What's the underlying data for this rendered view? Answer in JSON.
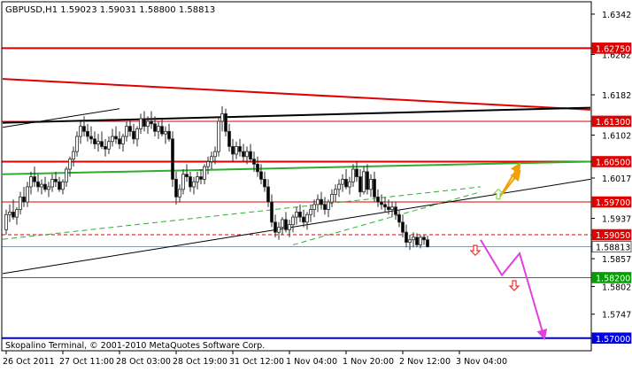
{
  "window": {
    "header": "GBPUSD,H1  1.59023 1.59031 1.58800 1.58813",
    "copyright": "Skopalino Terminal, © 2001-2010 MetaQuotes Software Corp."
  },
  "chart_data": {
    "type": "candlestick",
    "symbol": "GBPUSD",
    "timeframe": "H1",
    "ohlc_header": {
      "open": 1.59023,
      "high": 1.59031,
      "low": 1.588,
      "close": 1.58813
    },
    "ylim": [
      1.5675,
      1.6367
    ],
    "y_ticks": [
      {
        "value": 1.63425,
        "label": "1.63425"
      },
      {
        "value": 1.62625,
        "label": "1.62625"
      },
      {
        "value": 1.61825,
        "label": "1.61825"
      },
      {
        "value": 1.61025,
        "label": "1.61025"
      },
      {
        "value": 1.60175,
        "label": "1.60175"
      },
      {
        "value": 1.59375,
        "label": "1.59375"
      },
      {
        "value": 1.58575,
        "label": "1.58575"
      },
      {
        "value": 1.58025,
        "label": "1.58025"
      },
      {
        "value": 1.57475,
        "label": "1.57475"
      }
    ],
    "x_ticks": [
      {
        "bar": 0,
        "label": "26 Oct 2011"
      },
      {
        "bar": 16,
        "label": "27 Oct 11:00"
      },
      {
        "bar": 32,
        "label": "28 Oct 03:00"
      },
      {
        "bar": 48,
        "label": "28 Oct 19:00"
      },
      {
        "bar": 64,
        "label": "31 Oct 12:00"
      },
      {
        "bar": 80,
        "label": "1 Nov 04:00"
      },
      {
        "bar": 96,
        "label": "1 Nov 20:00"
      },
      {
        "bar": 112,
        "label": "2 Nov 12:00"
      },
      {
        "bar": 128,
        "label": "3 Nov 04:00"
      }
    ],
    "price_levels": [
      {
        "value": 1.6275,
        "label": "1.62750",
        "color": "#e00000",
        "style": "solid",
        "width": 2
      },
      {
        "value": 1.613,
        "label": "1.61300",
        "color": "#e00000",
        "style": "solid",
        "width": 1
      },
      {
        "value": 1.605,
        "label": "1.60500",
        "color": "#e00000",
        "style": "solid",
        "width": 2
      },
      {
        "value": 1.597,
        "label": "1.59700",
        "color": "#e00000",
        "style": "solid",
        "width": 1
      },
      {
        "value": 1.5905,
        "label": "1.59050",
        "color": "#e00000",
        "style": "dashed",
        "width": 1
      },
      {
        "value": 1.58813,
        "label": "1.58813",
        "color": "#8a9aa8",
        "style": "solid",
        "width": 1,
        "is_current": true
      },
      {
        "value": 1.582,
        "label": "1.58200",
        "color": "#00a000",
        "style": "solid",
        "width": 1
      },
      {
        "value": 1.57,
        "label": "1.57000",
        "color": "#0000e0",
        "style": "solid",
        "width": 2
      }
    ],
    "trend_lines": [
      {
        "name": "red-downtrend",
        "color": "#e00000",
        "width": 2,
        "style": "solid",
        "points": [
          [
            -1,
            1.6214
          ],
          [
            165,
            1.6153
          ]
        ]
      },
      {
        "name": "black-resistance",
        "color": "#000000",
        "width": 2,
        "style": "solid",
        "points": [
          [
            -1,
            1.6127
          ],
          [
            165,
            1.6157
          ]
        ]
      },
      {
        "name": "black-short",
        "color": "#000000",
        "width": 1,
        "style": "solid",
        "points": [
          [
            -1,
            1.6118
          ],
          [
            32,
            1.6155
          ]
        ]
      },
      {
        "name": "black-support",
        "color": "#000000",
        "width": 1,
        "style": "solid",
        "points": [
          [
            -1,
            1.5828
          ],
          [
            165,
            1.6015
          ]
        ]
      },
      {
        "name": "green-upper",
        "color": "#2fae2f",
        "width": 2,
        "style": "solid",
        "points": [
          [
            -1,
            1.6025
          ],
          [
            165,
            1.605
          ]
        ]
      },
      {
        "name": "green-dash-upper",
        "color": "#2fae2f",
        "width": 1,
        "style": "dashed",
        "points": [
          [
            -1,
            1.5896
          ],
          [
            134,
            1.6
          ]
        ]
      },
      {
        "name": "green-dash-lower",
        "color": "#2fae2f",
        "width": 1,
        "style": "dashed",
        "points": [
          [
            81,
            1.5885
          ],
          [
            134,
            1.599
          ]
        ]
      }
    ],
    "forecast_paths": [
      {
        "name": "bearish-path",
        "color": "#e040e0",
        "points": [
          [
            134,
            1.5895
          ],
          [
            140,
            1.5825
          ],
          [
            145,
            1.5868
          ],
          [
            152,
            1.57
          ]
        ]
      },
      {
        "name": "bullish-path",
        "color": "#f0a000",
        "points": [
          [
            139,
            1.5975
          ],
          [
            145,
            1.6045
          ]
        ]
      },
      {
        "name": "bullish-path-2",
        "color": "#f0a000",
        "points": [
          [
            140,
            1.5985
          ],
          [
            145,
            1.603
          ]
        ]
      }
    ],
    "arrow_markers": [
      {
        "name": "up-arrow",
        "bar": 139,
        "value": 1.5985,
        "direction": "up",
        "color": "#8fd35a"
      },
      {
        "name": "down-arrow-1",
        "bar": 132.5,
        "value": 1.5875,
        "direction": "down",
        "color": "#f03030"
      },
      {
        "name": "down-arrow-2",
        "bar": 143.5,
        "value": 1.5805,
        "direction": "down",
        "color": "#f03030"
      }
    ],
    "candles": [
      [
        1.5915,
        1.5955,
        1.5905,
        1.5945
      ],
      [
        1.5945,
        1.5965,
        1.593,
        1.595
      ],
      [
        1.595,
        1.5975,
        1.5935,
        1.594
      ],
      [
        1.594,
        1.596,
        1.5925,
        1.5955
      ],
      [
        1.5955,
        1.599,
        1.5945,
        1.598
      ],
      [
        1.598,
        1.6,
        1.596,
        1.597
      ],
      [
        1.597,
        1.601,
        1.596,
        1.6
      ],
      [
        1.6,
        1.603,
        1.5985,
        1.602
      ],
      [
        1.602,
        1.604,
        1.6,
        1.601
      ],
      [
        1.601,
        1.6025,
        1.599,
        1.6
      ],
      [
        1.6,
        1.6015,
        1.5985,
        1.6005
      ],
      [
        1.6005,
        1.602,
        1.599,
        1.5995
      ],
      [
        1.5995,
        1.601,
        1.598,
        1.6
      ],
      [
        1.6,
        1.6025,
        1.599,
        1.6015
      ],
      [
        1.6015,
        1.603,
        1.6,
        1.601
      ],
      [
        1.601,
        1.602,
        1.599,
        1.5995
      ],
      [
        1.5995,
        1.6015,
        1.5985,
        1.601
      ],
      [
        1.601,
        1.604,
        1.6,
        1.6035
      ],
      [
        1.6035,
        1.606,
        1.602,
        1.6055
      ],
      [
        1.6055,
        1.608,
        1.604,
        1.607
      ],
      [
        1.607,
        1.611,
        1.606,
        1.61
      ],
      [
        1.61,
        1.613,
        1.6085,
        1.612
      ],
      [
        1.612,
        1.614,
        1.61,
        1.611
      ],
      [
        1.611,
        1.6125,
        1.609,
        1.61
      ],
      [
        1.61,
        1.612,
        1.6085,
        1.6095
      ],
      [
        1.6095,
        1.611,
        1.6075,
        1.6085
      ],
      [
        1.6085,
        1.6105,
        1.607,
        1.609
      ],
      [
        1.609,
        1.611,
        1.6075,
        1.608
      ],
      [
        1.608,
        1.6095,
        1.606,
        1.6075
      ],
      [
        1.6075,
        1.61,
        1.6065,
        1.609
      ],
      [
        1.609,
        1.6115,
        1.608,
        1.61
      ],
      [
        1.61,
        1.612,
        1.6085,
        1.6095
      ],
      [
        1.6095,
        1.611,
        1.6075,
        1.6085
      ],
      [
        1.6085,
        1.6105,
        1.607,
        1.61
      ],
      [
        1.61,
        1.613,
        1.609,
        1.612
      ],
      [
        1.612,
        1.6135,
        1.61,
        1.611
      ],
      [
        1.611,
        1.6125,
        1.6085,
        1.6095
      ],
      [
        1.6095,
        1.612,
        1.608,
        1.6115
      ],
      [
        1.6115,
        1.6145,
        1.6105,
        1.6135
      ],
      [
        1.6135,
        1.615,
        1.611,
        1.612
      ],
      [
        1.612,
        1.614,
        1.6105,
        1.613
      ],
      [
        1.613,
        1.615,
        1.6115,
        1.6125
      ],
      [
        1.6125,
        1.614,
        1.61,
        1.611
      ],
      [
        1.611,
        1.613,
        1.6095,
        1.612
      ],
      [
        1.612,
        1.6135,
        1.61,
        1.6105
      ],
      [
        1.6105,
        1.612,
        1.6085,
        1.611
      ],
      [
        1.611,
        1.6125,
        1.609,
        1.6095
      ],
      [
        1.6095,
        1.611,
        1.6,
        1.6015
      ],
      [
        1.6015,
        1.603,
        1.5965,
        1.598
      ],
      [
        1.598,
        1.6005,
        1.597,
        1.5995
      ],
      [
        1.5995,
        1.6035,
        1.5985,
        1.6025
      ],
      [
        1.6025,
        1.6045,
        1.601,
        1.602
      ],
      [
        1.602,
        1.603,
        1.599,
        1.6
      ],
      [
        1.6,
        1.602,
        1.5985,
        1.601
      ],
      [
        1.601,
        1.603,
        1.5995,
        1.602
      ],
      [
        1.602,
        1.6035,
        1.6005,
        1.6015
      ],
      [
        1.6015,
        1.6045,
        1.6005,
        1.604
      ],
      [
        1.604,
        1.606,
        1.6025,
        1.605
      ],
      [
        1.605,
        1.607,
        1.6035,
        1.606
      ],
      [
        1.606,
        1.608,
        1.6045,
        1.607
      ],
      [
        1.607,
        1.614,
        1.606,
        1.613
      ],
      [
        1.613,
        1.616,
        1.611,
        1.6145
      ],
      [
        1.6145,
        1.6155,
        1.61,
        1.611
      ],
      [
        1.611,
        1.6125,
        1.607,
        1.608
      ],
      [
        1.608,
        1.6095,
        1.605,
        1.6065
      ],
      [
        1.6065,
        1.609,
        1.6055,
        1.608
      ],
      [
        1.608,
        1.6095,
        1.606,
        1.607
      ],
      [
        1.607,
        1.6085,
        1.605,
        1.606
      ],
      [
        1.606,
        1.608,
        1.6045,
        1.607
      ],
      [
        1.607,
        1.6085,
        1.605,
        1.6055
      ],
      [
        1.6055,
        1.607,
        1.603,
        1.6045
      ],
      [
        1.6045,
        1.606,
        1.602,
        1.603
      ],
      [
        1.603,
        1.6045,
        1.6005,
        1.6015
      ],
      [
        1.6015,
        1.603,
        1.599,
        1.6
      ],
      [
        1.6,
        1.6015,
        1.596,
        1.597
      ],
      [
        1.597,
        1.5985,
        1.592,
        1.593
      ],
      [
        1.593,
        1.5945,
        1.59,
        1.591
      ],
      [
        1.591,
        1.593,
        1.5895,
        1.592
      ],
      [
        1.592,
        1.594,
        1.5905,
        1.5935
      ],
      [
        1.5935,
        1.595,
        1.591,
        1.5915
      ],
      [
        1.5915,
        1.5935,
        1.59,
        1.5925
      ],
      [
        1.5925,
        1.5945,
        1.591,
        1.594
      ],
      [
        1.594,
        1.596,
        1.5925,
        1.595
      ],
      [
        1.595,
        1.5965,
        1.593,
        1.594
      ],
      [
        1.594,
        1.5955,
        1.592,
        1.593
      ],
      [
        1.593,
        1.595,
        1.5915,
        1.5945
      ],
      [
        1.5945,
        1.5965,
        1.593,
        1.5955
      ],
      [
        1.5955,
        1.5975,
        1.594,
        1.5965
      ],
      [
        1.5965,
        1.5985,
        1.595,
        1.5975
      ],
      [
        1.5975,
        1.599,
        1.5955,
        1.5965
      ],
      [
        1.5965,
        1.598,
        1.5945,
        1.5955
      ],
      [
        1.5955,
        1.5975,
        1.594,
        1.597
      ],
      [
        1.597,
        1.5995,
        1.596,
        1.5985
      ],
      [
        1.5985,
        1.6005,
        1.597,
        1.5995
      ],
      [
        1.5995,
        1.6015,
        1.598,
        1.6005
      ],
      [
        1.6005,
        1.6025,
        1.599,
        1.6015
      ],
      [
        1.6015,
        1.6035,
        1.5995,
        1.6
      ],
      [
        1.6,
        1.602,
        1.5985,
        1.601
      ],
      [
        1.601,
        1.6045,
        1.6,
        1.6035
      ],
      [
        1.6035,
        1.605,
        1.601,
        1.602
      ],
      [
        1.602,
        1.6035,
        1.598,
        1.599
      ],
      [
        1.599,
        1.604,
        1.5985,
        1.603
      ],
      [
        1.603,
        1.6045,
        1.5985,
        1.5995
      ],
      [
        1.5995,
        1.6025,
        1.598,
        1.6015
      ],
      [
        1.6015,
        1.603,
        1.597,
        1.598
      ],
      [
        1.598,
        1.5995,
        1.596,
        1.597
      ],
      [
        1.597,
        1.5985,
        1.5955,
        1.5965
      ],
      [
        1.5965,
        1.598,
        1.595,
        1.596
      ],
      [
        1.596,
        1.5975,
        1.5945,
        1.5955
      ],
      [
        1.5955,
        1.597,
        1.594,
        1.596
      ],
      [
        1.596,
        1.597,
        1.5935,
        1.5945
      ],
      [
        1.5945,
        1.5955,
        1.592,
        1.593
      ],
      [
        1.593,
        1.5945,
        1.59,
        1.591
      ],
      [
        1.591,
        1.5925,
        1.588,
        1.589
      ],
      [
        1.589,
        1.5905,
        1.5875,
        1.5895
      ],
      [
        1.5895,
        1.591,
        1.588,
        1.59
      ],
      [
        1.59,
        1.5908,
        1.588,
        1.5885
      ],
      [
        1.5885,
        1.5905,
        1.5878,
        1.59
      ],
      [
        1.59,
        1.5905,
        1.5885,
        1.5895
      ],
      [
        1.5895,
        1.5903,
        1.588,
        1.5881
      ]
    ]
  }
}
